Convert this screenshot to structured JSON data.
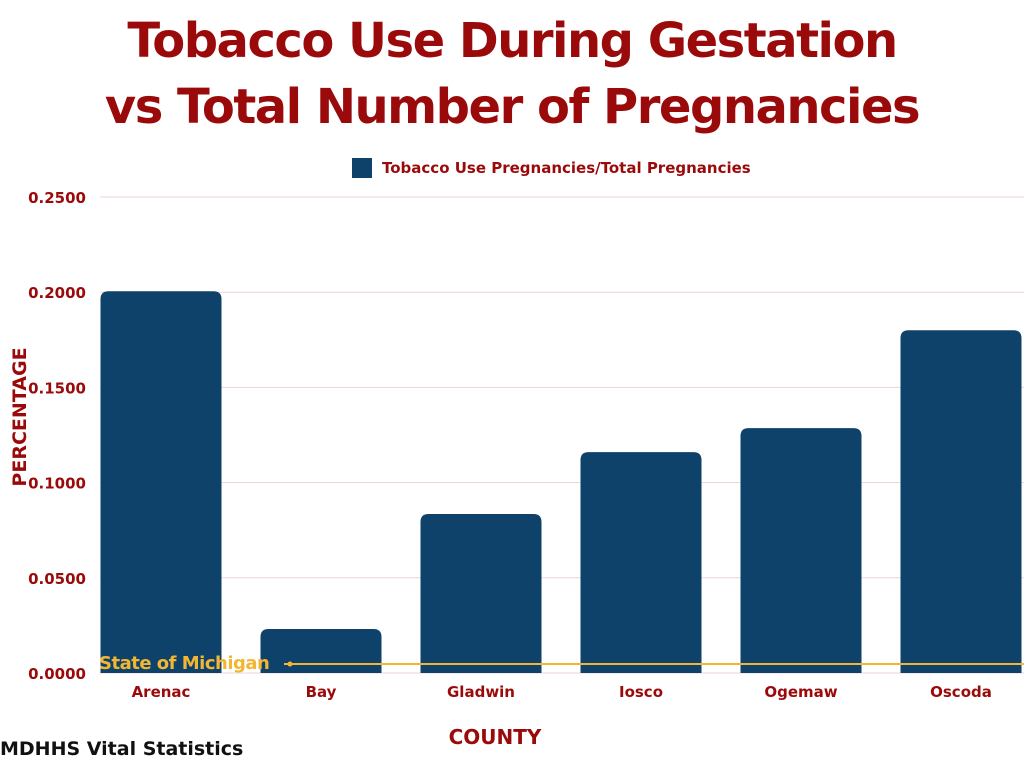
{
  "title_line1": "Tobacco Use During Gestation",
  "title_line2": "vs Total Number of Pregnancies",
  "source": "MDHHS Vital Statistics",
  "colors": {
    "bar": "#0f426a",
    "text": "#9b0a0a",
    "reference": "#f2b632",
    "grid": "#ecd3d6"
  },
  "chart_data": {
    "type": "bar",
    "title": "Tobacco Use During Gestation vs Total Number of Pregnancies",
    "xlabel": "COUNTY",
    "ylabel": "PERCENTAGE",
    "legend": "Tobacco Use Pregnancies/Total Pregnancies",
    "legend_position": "top",
    "categories": [
      "Arenac",
      "Bay",
      "Gladwin",
      "Iosco",
      "Ogemaw",
      "Oscoda"
    ],
    "values": [
      0.2005,
      0.0231,
      0.0835,
      0.116,
      0.1286,
      0.18
    ],
    "ylim": [
      0,
      0.25
    ],
    "yticks": [
      "0.0000",
      "0.0500",
      "0.1000",
      "0.1500",
      "0.2000",
      "0.2500"
    ],
    "grid": true,
    "reference_line": {
      "label": "State of Michigan",
      "value": 0.0047
    }
  }
}
